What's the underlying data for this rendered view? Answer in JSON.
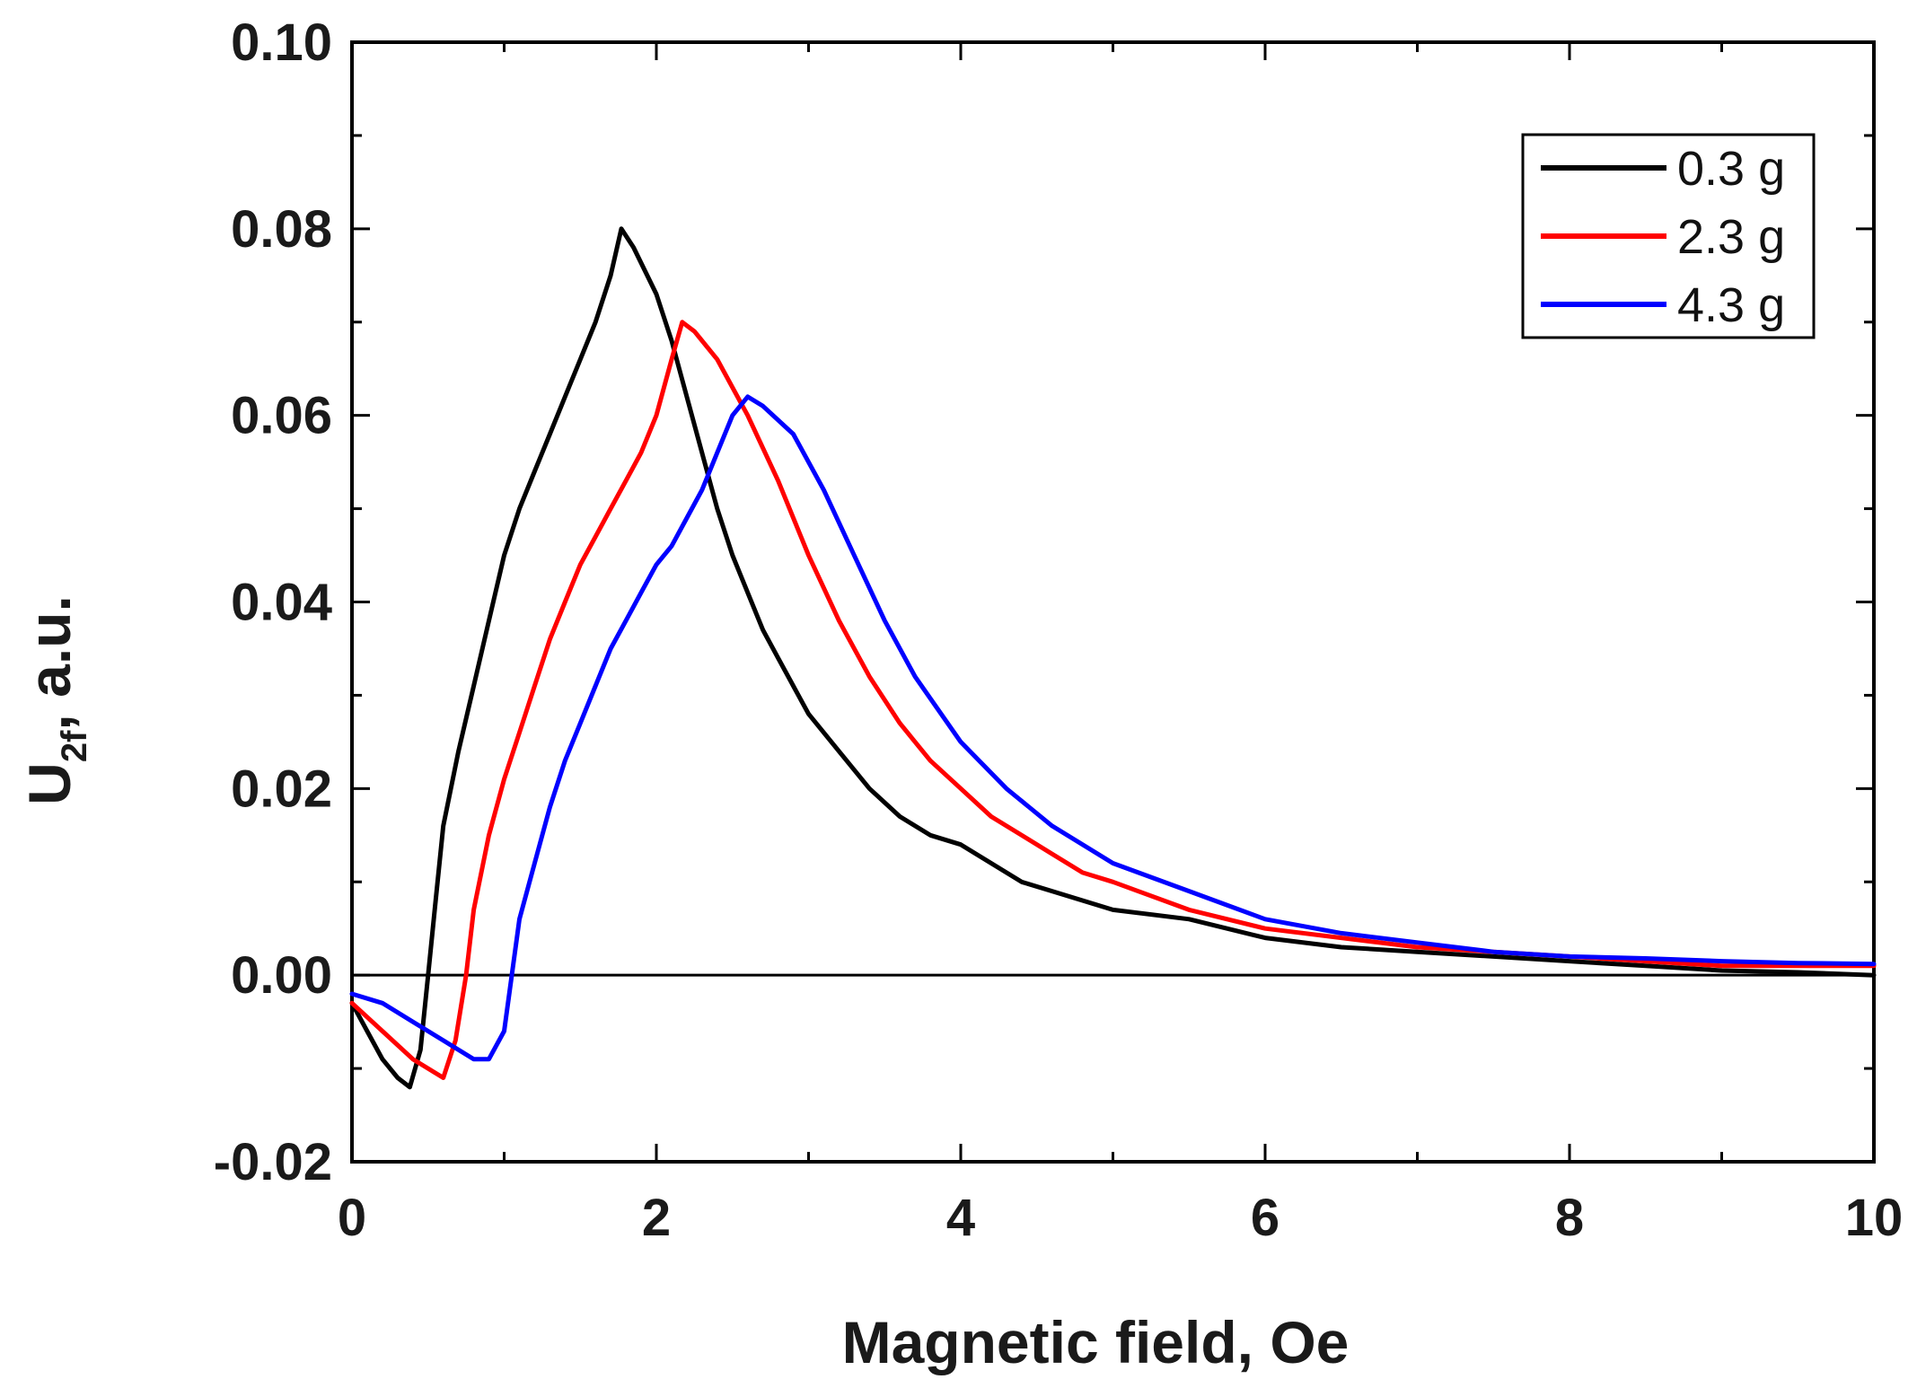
{
  "chart_data": {
    "type": "line",
    "title": "",
    "xlabel": "Magnetic field, Oe",
    "ylabel_main": "U",
    "ylabel_sub": "2f",
    "ylabel_rest": ", a.u.",
    "xlim": [
      0,
      10
    ],
    "ylim": [
      -0.02,
      0.1
    ],
    "xticks": [
      0,
      2,
      4,
      6,
      8,
      10
    ],
    "xtick_labels": [
      "0",
      "2",
      "4",
      "6",
      "8",
      "10"
    ],
    "yticks": [
      -0.02,
      0.0,
      0.02,
      0.04,
      0.06,
      0.08,
      0.1
    ],
    "ytick_labels": [
      "-0.02",
      "0.00",
      "0.02",
      "0.04",
      "0.06",
      "0.08",
      "0.10"
    ],
    "zero_line": true,
    "legend_position": "top-right",
    "series": [
      {
        "name": "0.3 g",
        "color": "#000000",
        "x": [
          0,
          0.1,
          0.2,
          0.3,
          0.38,
          0.45,
          0.5,
          0.55,
          0.6,
          0.7,
          0.8,
          0.9,
          1.0,
          1.1,
          1.2,
          1.3,
          1.4,
          1.5,
          1.6,
          1.7,
          1.77,
          1.85,
          2.0,
          2.1,
          2.2,
          2.3,
          2.4,
          2.5,
          2.6,
          2.7,
          2.8,
          2.9,
          3.0,
          3.2,
          3.4,
          3.6,
          3.8,
          4.0,
          4.2,
          4.4,
          4.6,
          4.8,
          5.0,
          5.5,
          6.0,
          6.5,
          7.0,
          7.5,
          8.0,
          8.5,
          9.0,
          9.5,
          10.0
        ],
        "y": [
          -0.003,
          -0.006,
          -0.009,
          -0.011,
          -0.012,
          -0.008,
          0.0,
          0.008,
          0.016,
          0.024,
          0.031,
          0.038,
          0.045,
          0.05,
          0.054,
          0.058,
          0.062,
          0.066,
          0.07,
          0.075,
          0.08,
          0.078,
          0.073,
          0.068,
          0.062,
          0.056,
          0.05,
          0.045,
          0.041,
          0.037,
          0.034,
          0.031,
          0.028,
          0.024,
          0.02,
          0.017,
          0.015,
          0.014,
          0.012,
          0.01,
          0.009,
          0.008,
          0.007,
          0.006,
          0.004,
          0.003,
          0.0025,
          0.002,
          0.0015,
          0.001,
          0.0005,
          0.0003,
          0.0
        ]
      },
      {
        "name": "2.3 g",
        "color": "#ff0000",
        "x": [
          0,
          0.2,
          0.4,
          0.6,
          0.68,
          0.75,
          0.8,
          0.9,
          1.0,
          1.1,
          1.2,
          1.3,
          1.4,
          1.5,
          1.6,
          1.7,
          1.8,
          1.9,
          2.0,
          2.1,
          2.17,
          2.25,
          2.4,
          2.6,
          2.8,
          3.0,
          3.2,
          3.4,
          3.6,
          3.8,
          4.0,
          4.2,
          4.4,
          4.6,
          4.8,
          5.0,
          5.5,
          6.0,
          6.5,
          7.0,
          7.5,
          8.0,
          8.5,
          9.0,
          9.5,
          10.0
        ],
        "y": [
          -0.003,
          -0.006,
          -0.009,
          -0.011,
          -0.007,
          0.0,
          0.007,
          0.015,
          0.021,
          0.026,
          0.031,
          0.036,
          0.04,
          0.044,
          0.047,
          0.05,
          0.053,
          0.056,
          0.06,
          0.066,
          0.07,
          0.069,
          0.066,
          0.06,
          0.053,
          0.045,
          0.038,
          0.032,
          0.027,
          0.023,
          0.02,
          0.017,
          0.015,
          0.013,
          0.011,
          0.01,
          0.007,
          0.005,
          0.004,
          0.003,
          0.0025,
          0.002,
          0.0015,
          0.001,
          0.001,
          0.001
        ]
      },
      {
        "name": "4.3 g",
        "color": "#0000ff",
        "x": [
          0,
          0.2,
          0.4,
          0.6,
          0.8,
          0.9,
          1.0,
          1.05,
          1.1,
          1.2,
          1.3,
          1.4,
          1.5,
          1.6,
          1.7,
          1.8,
          1.9,
          2.0,
          2.1,
          2.2,
          2.3,
          2.4,
          2.5,
          2.6,
          2.7,
          2.9,
          3.1,
          3.3,
          3.5,
          3.7,
          4.0,
          4.3,
          4.6,
          5.0,
          5.5,
          6.0,
          6.5,
          7.0,
          7.5,
          8.0,
          8.5,
          9.0,
          9.5,
          10.0
        ],
        "y": [
          -0.002,
          -0.003,
          -0.005,
          -0.007,
          -0.009,
          -0.009,
          -0.006,
          0.0,
          0.006,
          0.012,
          0.018,
          0.023,
          0.027,
          0.031,
          0.035,
          0.038,
          0.041,
          0.044,
          0.046,
          0.049,
          0.052,
          0.056,
          0.06,
          0.062,
          0.061,
          0.058,
          0.052,
          0.045,
          0.038,
          0.032,
          0.025,
          0.02,
          0.016,
          0.012,
          0.009,
          0.006,
          0.0045,
          0.0035,
          0.0025,
          0.002,
          0.0018,
          0.0015,
          0.0013,
          0.0012
        ]
      }
    ]
  }
}
